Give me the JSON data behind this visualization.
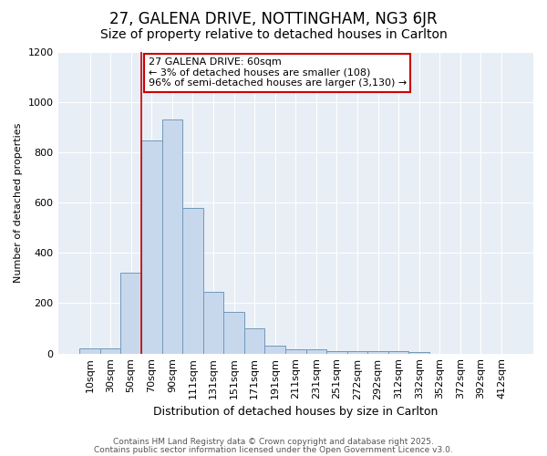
{
  "title1": "27, GALENA DRIVE, NOTTINGHAM, NG3 6JR",
  "title2": "Size of property relative to detached houses in Carlton",
  "xlabel": "Distribution of detached houses by size in Carlton",
  "ylabel": "Number of detached properties",
  "categories": [
    "10sqm",
    "30sqm",
    "50sqm",
    "70sqm",
    "90sqm",
    "111sqm",
    "131sqm",
    "151sqm",
    "171sqm",
    "191sqm",
    "211sqm",
    "231sqm",
    "251sqm",
    "272sqm",
    "292sqm",
    "312sqm",
    "332sqm",
    "352sqm",
    "372sqm",
    "392sqm",
    "412sqm"
  ],
  "values": [
    20,
    20,
    320,
    845,
    930,
    578,
    245,
    165,
    100,
    30,
    15,
    15,
    10,
    10,
    10,
    8,
    5,
    0,
    0,
    0,
    0
  ],
  "bar_color": "#c8d8ec",
  "bar_edge_color": "#7099bb",
  "vline_x": 2.5,
  "vline_color": "#cc0000",
  "annotation_text": "27 GALENA DRIVE: 60sqm\n← 3% of detached houses are smaller (108)\n96% of semi-detached houses are larger (3,130) →",
  "annotation_box_color": "#ffffff",
  "annotation_box_edge": "#cc0000",
  "ylim": [
    0,
    1200
  ],
  "yticks": [
    0,
    200,
    400,
    600,
    800,
    1000,
    1200
  ],
  "background_color": "#e8eef5",
  "footer1": "Contains HM Land Registry data © Crown copyright and database right 2025.",
  "footer2": "Contains public sector information licensed under the Open Government Licence v3.0.",
  "title1_fontsize": 12,
  "title2_fontsize": 10,
  "annot_fontsize": 8,
  "axis_fontsize": 8,
  "xlabel_fontsize": 9,
  "ylabel_fontsize": 8,
  "footer_fontsize": 6.5
}
